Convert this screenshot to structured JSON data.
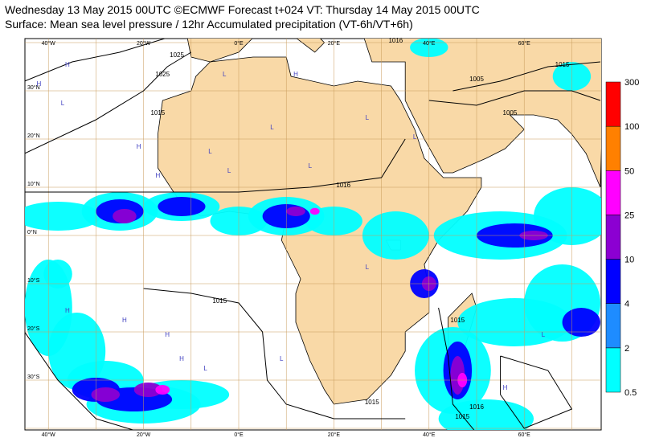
{
  "header": {
    "line1": "Wednesday 13 May 2015 00UTC ©ECMWF Forecast t+024 VT: Thursday 14 May 2015 00UTC",
    "line2": "Surface: Mean sea level pressure / 12hr Accumulated precipitation (VT-6h/VT+6h)"
  },
  "map": {
    "lon_labels": [
      "40°W",
      "20°W",
      "0°E",
      "20°E",
      "40°E",
      "60°E"
    ],
    "lat_labels": [
      "30°N",
      "20°N",
      "10°N",
      "0°N",
      "10°S",
      "20°S",
      "30°S"
    ],
    "isobar_labels": [
      "1025",
      "1015",
      "1016",
      "1005",
      "1005",
      "1015",
      "1015",
      "1016",
      "1015",
      "1015",
      "1015",
      "1016",
      "1025"
    ],
    "pressure_centers": [
      "H",
      "L",
      "H",
      "L",
      "H",
      "L",
      "L",
      "L",
      "H",
      "L",
      "H",
      "L",
      "L",
      "L",
      "H",
      "H",
      "H",
      "H",
      "L",
      "H",
      "H",
      "L",
      "L"
    ]
  },
  "colorbar": {
    "labels": [
      "0.5",
      "2",
      "4",
      "10",
      "25",
      "50",
      "100",
      "300"
    ],
    "colors": [
      "#00ffff",
      "#1e8cff",
      "#0000ff",
      "#8c00d2",
      "#ff00ff",
      "#ff8000",
      "#ff0000"
    ]
  }
}
